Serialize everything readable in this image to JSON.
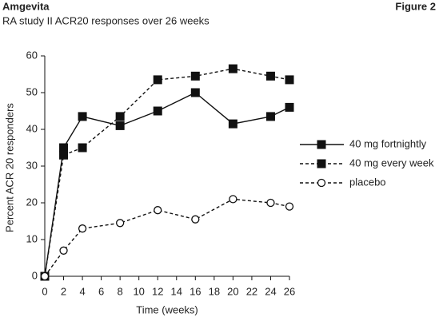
{
  "chart_data": {
    "type": "line",
    "title": "Amgevita",
    "figure_label": "Figure 2",
    "subtitle": "RA study II ACR20 responses over 26 weeks",
    "xlabel": "Time (weeks)",
    "ylabel": "Percent ACR 20 responders",
    "x": [
      0,
      2,
      4,
      8,
      12,
      16,
      20,
      24,
      26
    ],
    "series": [
      {
        "name": "40 mg fortnightly",
        "color": "#111111",
        "line_style": "solid",
        "marker": "square",
        "values": [
          0,
          35,
          43.5,
          41,
          45,
          50,
          41.5,
          43.5,
          46
        ]
      },
      {
        "name": "40 mg every week",
        "color": "#111111",
        "line_style": "dashed",
        "marker": "square",
        "values": [
          0,
          33,
          35,
          43.5,
          53.5,
          54.5,
          56.5,
          54.5,
          53.5
        ]
      },
      {
        "name": "placebo",
        "color": "#111111",
        "line_style": "dashed",
        "marker": "open-circle",
        "values": [
          0,
          7,
          13,
          14.5,
          18,
          15.5,
          21,
          20,
          19
        ]
      }
    ],
    "xlim": [
      0,
      26
    ],
    "xticks": [
      0,
      2,
      4,
      6,
      8,
      10,
      12,
      14,
      16,
      18,
      20,
      22,
      24,
      26
    ],
    "ylim": [
      0,
      60
    ],
    "yticks": [
      0,
      10,
      20,
      30,
      40,
      50,
      60
    ],
    "grid": false,
    "legend_position": "right"
  }
}
